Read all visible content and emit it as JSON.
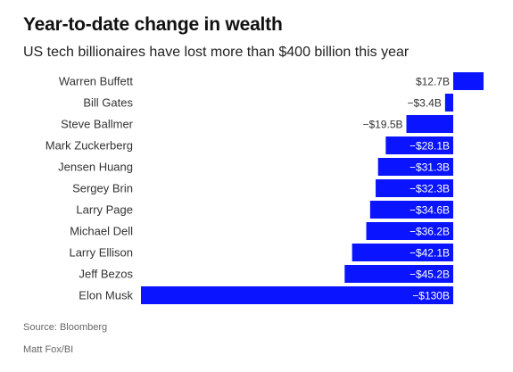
{
  "chart_data": {
    "type": "bar",
    "orientation": "horizontal",
    "title": "Year-to-date change in wealth",
    "subtitle": "US tech billionaires have lost more than $400 billion this year",
    "categories": [
      "Warren Buffett",
      "Bill Gates",
      "Steve Ballmer",
      "Mark Zuckerberg",
      "Jensen Huang",
      "Sergey Brin",
      "Larry Page",
      "Michael Dell",
      "Larry Ellison",
      "Jeff Bezos",
      "Elon Musk"
    ],
    "values": [
      12.7,
      -3.4,
      -19.5,
      -28.1,
      -31.3,
      -32.3,
      -34.6,
      -36.2,
      -42.1,
      -45.2,
      -130
    ],
    "data_labels": [
      "$12.7B",
      "−$3.4B",
      "−$19.5B",
      "−$28.1B",
      "−$31.3B",
      "−$32.3B",
      "−$34.6B",
      "−$36.2B",
      "−$42.1B",
      "−$45.2B",
      "−$130B"
    ],
    "units": "billion USD",
    "bar_color": "#0A14FF",
    "label_color_inside": "#ffffff",
    "label_color_outside": "#333333",
    "grid": false,
    "xlim": [
      -130,
      12.7
    ]
  },
  "footer": {
    "source": "Source: Bloomberg",
    "credit": "Matt Fox/BI"
  }
}
